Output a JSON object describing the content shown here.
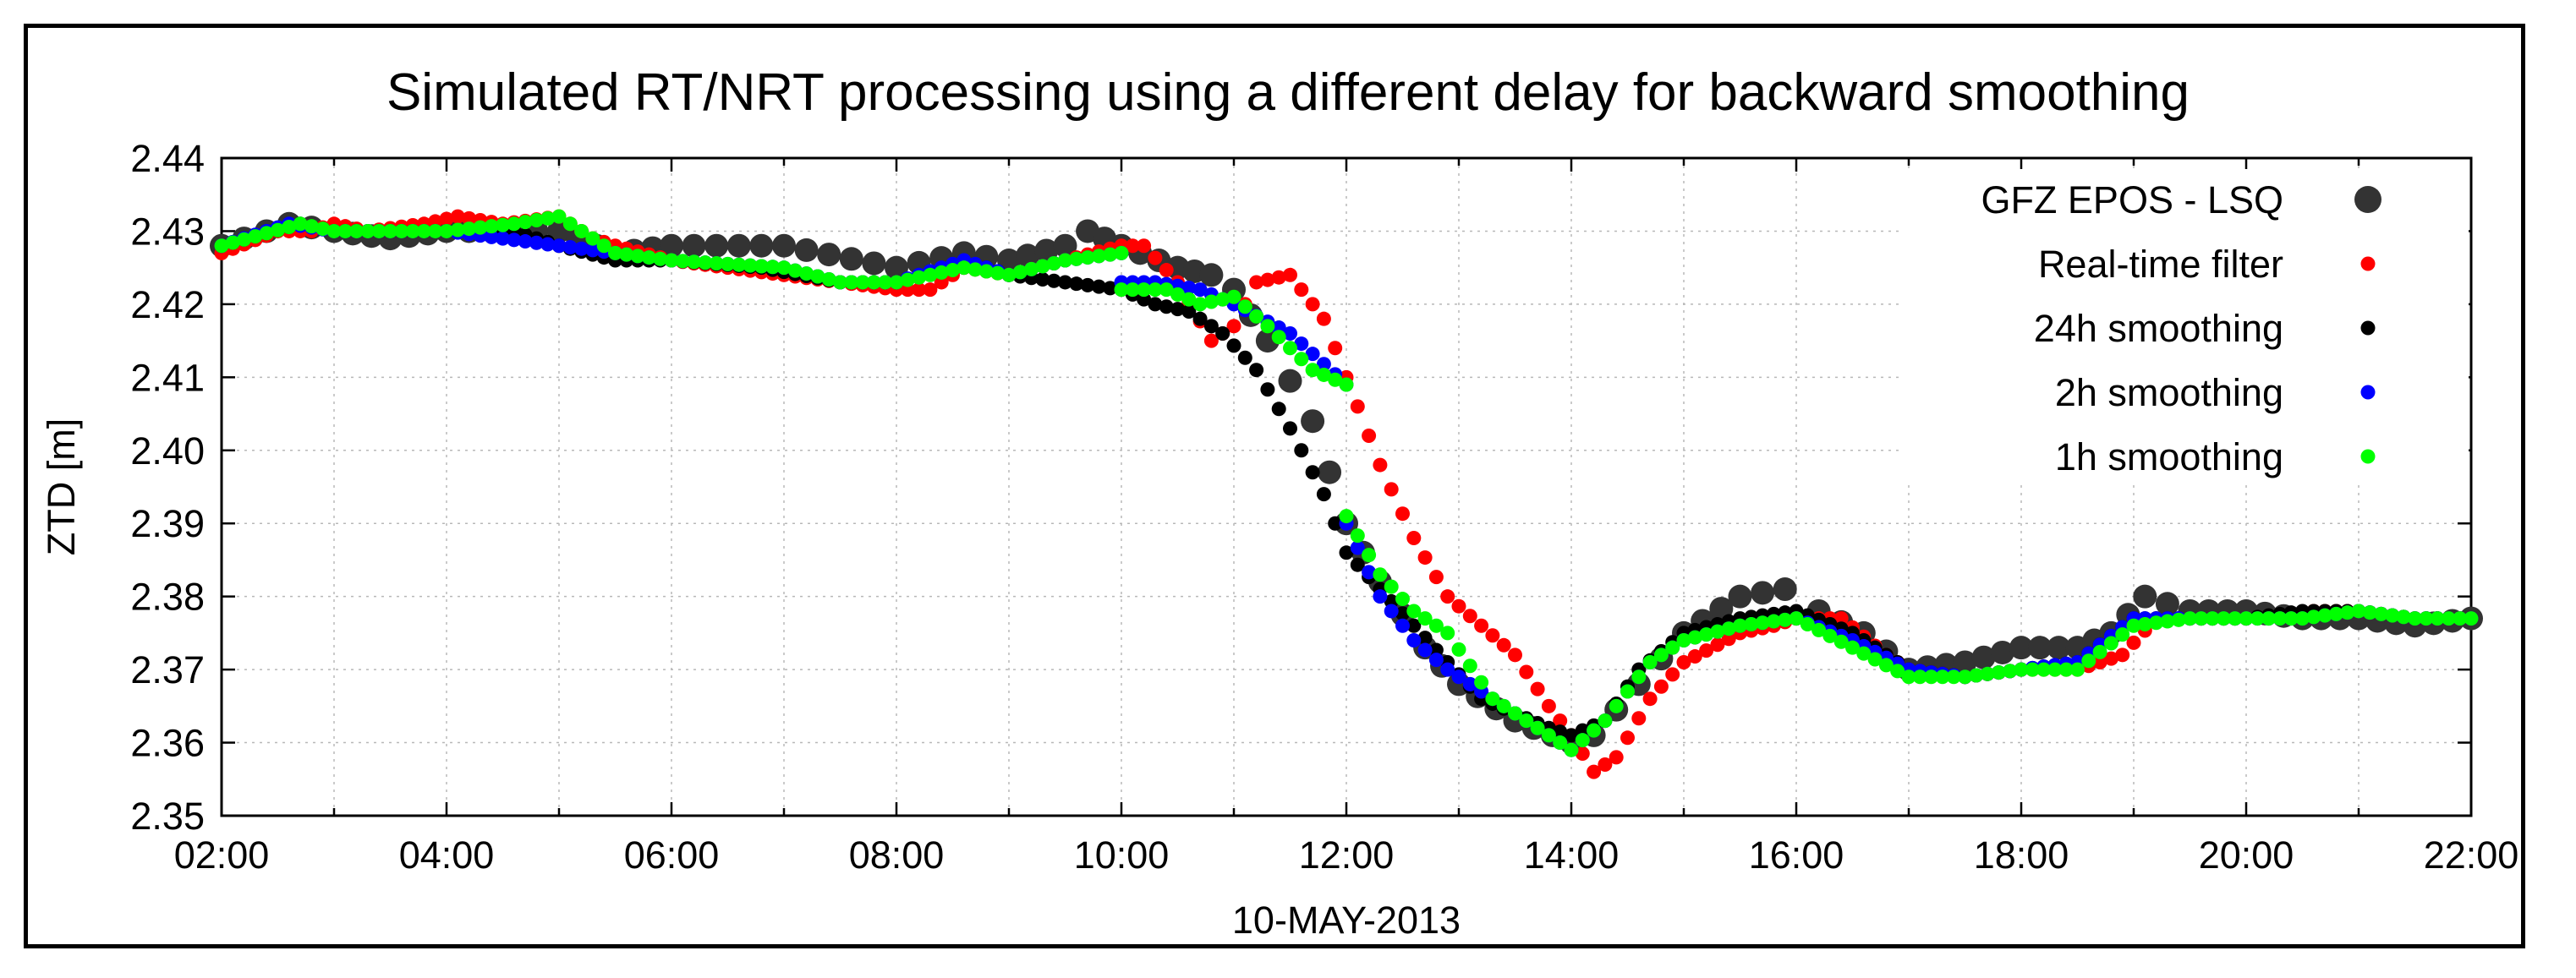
{
  "chart_data": {
    "type": "scatter",
    "title": "Simulated RT/NRT processing using a different delay for backward smoothing",
    "xlabel": "10-MAY-2013",
    "ylabel": "ZTD [m]",
    "xlim": [
      2,
      22
    ],
    "ylim": [
      2.35,
      2.44
    ],
    "x_ticks": [
      2,
      4,
      6,
      8,
      10,
      12,
      14,
      16,
      18,
      20,
      22
    ],
    "x_tick_labels": [
      "02:00",
      "04:00",
      "06:00",
      "08:00",
      "10:00",
      "12:00",
      "14:00",
      "16:00",
      "18:00",
      "20:00",
      "22:00"
    ],
    "y_ticks": [
      2.35,
      2.36,
      2.37,
      2.38,
      2.39,
      2.4,
      2.41,
      2.42,
      2.43,
      2.44
    ],
    "y_tick_labels": [
      "2.35",
      "2.36",
      "2.37",
      "2.38",
      "2.39",
      "2.40",
      "2.41",
      "2.42",
      "2.43",
      "2.44"
    ],
    "grid": true,
    "legend_position": "top-right",
    "series": [
      {
        "name": "GFZ EPOS - LSQ",
        "color": "#333333",
        "marker_size": "large",
        "step": 0.2,
        "points": [
          [
            2.0,
            2.428
          ],
          [
            2.6,
            2.431
          ],
          [
            3.0,
            2.43
          ],
          [
            3.5,
            2.429
          ],
          [
            4.0,
            2.43
          ],
          [
            5.0,
            2.43
          ],
          [
            5.5,
            2.427
          ],
          [
            6.0,
            2.428
          ],
          [
            7.0,
            2.428
          ],
          [
            8.0,
            2.425
          ],
          [
            8.6,
            2.427
          ],
          [
            9.0,
            2.426
          ],
          [
            9.5,
            2.428
          ],
          [
            9.7,
            2.43
          ],
          [
            10.0,
            2.428
          ],
          [
            10.5,
            2.425
          ],
          [
            10.8,
            2.424
          ],
          [
            11.0,
            2.422
          ],
          [
            11.3,
            2.415
          ],
          [
            11.7,
            2.404
          ],
          [
            12.0,
            2.39
          ],
          [
            12.3,
            2.382
          ],
          [
            12.7,
            2.373
          ],
          [
            13.0,
            2.368
          ],
          [
            13.5,
            2.363
          ],
          [
            14.0,
            2.36
          ],
          [
            14.2,
            2.361
          ],
          [
            14.6,
            2.368
          ],
          [
            15.0,
            2.375
          ],
          [
            15.5,
            2.38
          ],
          [
            15.9,
            2.381
          ],
          [
            16.2,
            2.378
          ],
          [
            16.6,
            2.375
          ],
          [
            17.0,
            2.37
          ],
          [
            17.5,
            2.371
          ],
          [
            18.0,
            2.373
          ],
          [
            18.5,
            2.373
          ],
          [
            18.8,
            2.375
          ],
          [
            19.1,
            2.38
          ],
          [
            19.5,
            2.378
          ],
          [
            20.0,
            2.378
          ],
          [
            20.5,
            2.377
          ],
          [
            21.0,
            2.377
          ],
          [
            21.5,
            2.376
          ],
          [
            22.0,
            2.377
          ]
        ]
      },
      {
        "name": "Real-time filter",
        "color": "#ff0000",
        "marker_size": "small",
        "step": 0.1,
        "points": [
          [
            2.0,
            2.427
          ],
          [
            2.5,
            2.43
          ],
          [
            2.8,
            2.43
          ],
          [
            3.0,
            2.431
          ],
          [
            3.3,
            2.43
          ],
          [
            3.8,
            2.431
          ],
          [
            4.1,
            2.432
          ],
          [
            4.5,
            2.431
          ],
          [
            5.0,
            2.432
          ],
          [
            5.3,
            2.429
          ],
          [
            5.5,
            2.428
          ],
          [
            6.0,
            2.426
          ],
          [
            7.0,
            2.424
          ],
          [
            7.5,
            2.423
          ],
          [
            8.0,
            2.422
          ],
          [
            8.3,
            2.422
          ],
          [
            8.6,
            2.425
          ],
          [
            9.0,
            2.424
          ],
          [
            9.5,
            2.426
          ],
          [
            10.0,
            2.428
          ],
          [
            10.2,
            2.428
          ],
          [
            10.5,
            2.423
          ],
          [
            10.8,
            2.415
          ],
          [
            11.0,
            2.417
          ],
          [
            11.2,
            2.423
          ],
          [
            11.5,
            2.424
          ],
          [
            11.8,
            2.418
          ],
          [
            12.0,
            2.41
          ],
          [
            12.3,
            2.398
          ],
          [
            12.6,
            2.388
          ],
          [
            12.9,
            2.38
          ],
          [
            13.2,
            2.376
          ],
          [
            13.5,
            2.372
          ],
          [
            13.8,
            2.365
          ],
          [
            14.0,
            2.361
          ],
          [
            14.2,
            2.356
          ],
          [
            14.4,
            2.358
          ],
          [
            14.7,
            2.366
          ],
          [
            15.0,
            2.371
          ],
          [
            15.5,
            2.375
          ],
          [
            15.8,
            2.376
          ],
          [
            16.0,
            2.377
          ],
          [
            16.4,
            2.377
          ],
          [
            16.8,
            2.372
          ],
          [
            17.0,
            2.37
          ],
          [
            17.5,
            2.369
          ],
          [
            18.0,
            2.37
          ],
          [
            18.5,
            2.37
          ],
          [
            18.9,
            2.372
          ],
          [
            19.2,
            2.377
          ],
          [
            19.6,
            2.377
          ],
          [
            20.0,
            2.377
          ],
          [
            20.6,
            2.378
          ],
          [
            21.0,
            2.378
          ],
          [
            21.5,
            2.377
          ],
          [
            22.0,
            2.377
          ]
        ]
      },
      {
        "name": "24h smoothing",
        "color": "#000000",
        "marker_size": "small",
        "step": 0.1,
        "points": [
          [
            2.0,
            2.428
          ],
          [
            2.7,
            2.431
          ],
          [
            3.0,
            2.43
          ],
          [
            3.5,
            2.43
          ],
          [
            4.0,
            2.43
          ],
          [
            4.6,
            2.43
          ],
          [
            5.0,
            2.428
          ],
          [
            5.5,
            2.426
          ],
          [
            6.0,
            2.426
          ],
          [
            6.8,
            2.425
          ],
          [
            7.5,
            2.423
          ],
          [
            8.0,
            2.423
          ],
          [
            8.5,
            2.425
          ],
          [
            8.8,
            2.425
          ],
          [
            9.0,
            2.424
          ],
          [
            9.5,
            2.423
          ],
          [
            10.0,
            2.422
          ],
          [
            10.3,
            2.42
          ],
          [
            10.6,
            2.419
          ],
          [
            10.9,
            2.416
          ],
          [
            11.2,
            2.411
          ],
          [
            11.5,
            2.403
          ],
          [
            11.8,
            2.394
          ],
          [
            12.0,
            2.386
          ],
          [
            12.3,
            2.381
          ],
          [
            12.6,
            2.376
          ],
          [
            12.9,
            2.371
          ],
          [
            13.2,
            2.366
          ],
          [
            13.5,
            2.364
          ],
          [
            13.8,
            2.362
          ],
          [
            14.0,
            2.361
          ],
          [
            14.3,
            2.363
          ],
          [
            14.6,
            2.37
          ],
          [
            15.0,
            2.375
          ],
          [
            15.5,
            2.377
          ],
          [
            16.0,
            2.378
          ],
          [
            16.5,
            2.375
          ],
          [
            17.0,
            2.37
          ],
          [
            17.5,
            2.369
          ],
          [
            18.0,
            2.37
          ],
          [
            18.5,
            2.371
          ],
          [
            19.0,
            2.377
          ],
          [
            19.5,
            2.377
          ],
          [
            20.0,
            2.377
          ],
          [
            20.5,
            2.378
          ],
          [
            21.0,
            2.378
          ],
          [
            21.5,
            2.377
          ],
          [
            22.0,
            2.377
          ]
        ]
      },
      {
        "name": "2h smoothing",
        "color": "#0000ff",
        "marker_size": "small",
        "step": 0.1,
        "segments": [
          [
            [
              2.0,
              2.428
            ],
            [
              2.6,
              2.431
            ],
            [
              3.0,
              2.43
            ],
            [
              4.0,
              2.43
            ],
            [
              4.5,
              2.429
            ],
            [
              5.0,
              2.428
            ],
            [
              6.0,
              2.426
            ],
            [
              7.0,
              2.425
            ],
            [
              7.5,
              2.423
            ],
            [
              8.0,
              2.423
            ],
            [
              8.6,
              2.426
            ],
            [
              9.0,
              2.424
            ],
            [
              9.5,
              2.426
            ],
            [
              10.0,
              2.427
            ]
          ],
          [
            [
              10.0,
              2.423
            ],
            [
              10.3,
              2.423
            ],
            [
              10.7,
              2.422
            ],
            [
              11.0,
              2.42
            ],
            [
              11.5,
              2.416
            ],
            [
              12.0,
              2.409
            ]
          ],
          [
            [
              12.0,
              2.39
            ],
            [
              12.3,
              2.38
            ],
            [
              12.6,
              2.374
            ],
            [
              12.9,
              2.37
            ],
            [
              13.3,
              2.366
            ],
            [
              13.7,
              2.362
            ],
            [
              14.0,
              2.359
            ],
            [
              14.3,
              2.363
            ],
            [
              14.7,
              2.371
            ],
            [
              15.0,
              2.374
            ],
            [
              15.5,
              2.376
            ],
            [
              16.0,
              2.377
            ],
            [
              16.5,
              2.374
            ],
            [
              17.0,
              2.37
            ],
            [
              17.5,
              2.369
            ],
            [
              18.0,
              2.37
            ],
            [
              18.5,
              2.371
            ],
            [
              19.0,
              2.377
            ],
            [
              19.5,
              2.377
            ],
            [
              20.0,
              2.377
            ],
            [
              20.5,
              2.377
            ],
            [
              21.0,
              2.378
            ],
            [
              21.5,
              2.377
            ],
            [
              22.0,
              2.377
            ]
          ]
        ]
      },
      {
        "name": "1h smoothing",
        "color": "#00ff00",
        "marker_size": "small",
        "step": 0.1,
        "segments": [
          [
            [
              2.0,
              2.428
            ],
            [
              2.7,
              2.431
            ],
            [
              3.0,
              2.43
            ],
            [
              4.0,
              2.43
            ],
            [
              4.6,
              2.431
            ],
            [
              5.0,
              2.432
            ],
            [
              5.5,
              2.427
            ],
            [
              6.0,
              2.426
            ],
            [
              7.0,
              2.425
            ],
            [
              7.5,
              2.423
            ],
            [
              8.0,
              2.423
            ],
            [
              8.6,
              2.425
            ],
            [
              9.0,
              2.424
            ],
            [
              9.5,
              2.426
            ],
            [
              10.0,
              2.427
            ]
          ],
          [
            [
              10.0,
              2.422
            ],
            [
              10.4,
              2.422
            ],
            [
              10.7,
              2.42
            ],
            [
              11.0,
              2.421
            ],
            [
              11.3,
              2.417
            ],
            [
              11.7,
              2.411
            ],
            [
              12.0,
              2.409
            ]
          ],
          [
            [
              12.0,
              2.391
            ],
            [
              12.3,
              2.383
            ],
            [
              12.6,
              2.378
            ],
            [
              12.9,
              2.375
            ],
            [
              13.3,
              2.366
            ],
            [
              13.7,
              2.362
            ],
            [
              14.0,
              2.359
            ],
            [
              14.3,
              2.363
            ],
            [
              14.7,
              2.371
            ],
            [
              15.0,
              2.374
            ],
            [
              15.5,
              2.376
            ],
            [
              16.0,
              2.377
            ],
            [
              16.5,
              2.373
            ],
            [
              17.0,
              2.369
            ],
            [
              17.5,
              2.369
            ],
            [
              18.0,
              2.37
            ],
            [
              18.5,
              2.37
            ],
            [
              19.0,
              2.376
            ],
            [
              19.5,
              2.377
            ],
            [
              20.0,
              2.377
            ],
            [
              20.5,
              2.377
            ],
            [
              21.0,
              2.378
            ],
            [
              21.5,
              2.377
            ],
            [
              22.0,
              2.377
            ]
          ]
        ]
      }
    ]
  }
}
